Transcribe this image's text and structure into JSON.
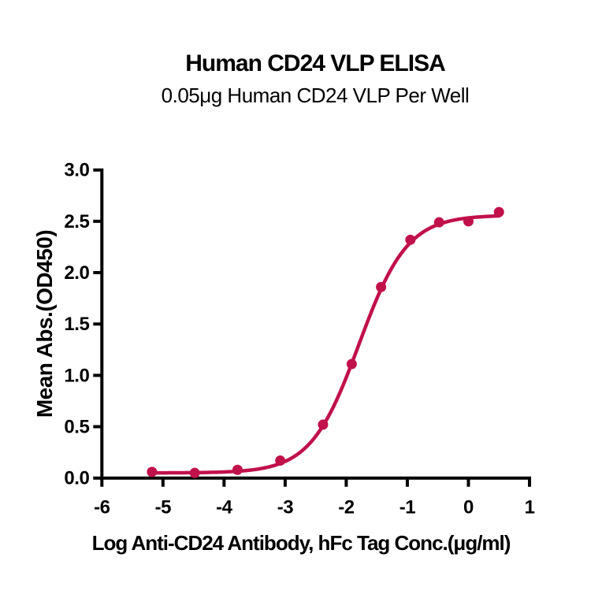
{
  "chart_data": {
    "type": "scatter",
    "title": "Human CD24 VLP ELISA",
    "subtitle": "0.05μg Human CD24 VLP Per Well",
    "xlabel": "Log Anti-CD24 Antibody, hFc Tag Conc.(μg/ml)",
    "ylabel": "Mean Abs.(OD450)",
    "xlim": [
      -6,
      1
    ],
    "ylim": [
      0,
      3
    ],
    "x_ticks": [
      -6,
      -5,
      -4,
      -3,
      -2,
      -1,
      0,
      1
    ],
    "x_tick_labels": [
      "-6",
      "-5",
      "-4",
      "-3",
      "-2",
      "-1",
      "0",
      "1"
    ],
    "y_ticks": [
      0,
      0.5,
      1,
      1.5,
      2,
      2.5,
      3
    ],
    "y_tick_labels": [
      "0.0",
      "0.5",
      "1.0",
      "1.5",
      "2.0",
      "2.5",
      "3.0"
    ],
    "grid": false,
    "legend": null,
    "points": [
      [
        -5.18,
        0.06
      ],
      [
        -4.48,
        0.05
      ],
      [
        -3.78,
        0.08
      ],
      [
        -3.08,
        0.17
      ],
      [
        -2.38,
        0.52
      ],
      [
        -1.91,
        1.11
      ],
      [
        -1.43,
        1.86
      ],
      [
        -0.95,
        2.32
      ],
      [
        -0.48,
        2.49
      ],
      [
        0.0,
        2.5
      ],
      [
        0.5,
        2.59
      ]
    ],
    "fit_curve": {
      "model": "4PL",
      "bottom": 0.05,
      "top": 2.56,
      "log_ec50": -1.79,
      "hill": 1.1,
      "x_start": -5.18,
      "x_end": 0.5
    },
    "colors": {
      "curve": "#C1114A",
      "axis": "#000000",
      "text": "#000000",
      "background": "#FFFFFF"
    }
  }
}
